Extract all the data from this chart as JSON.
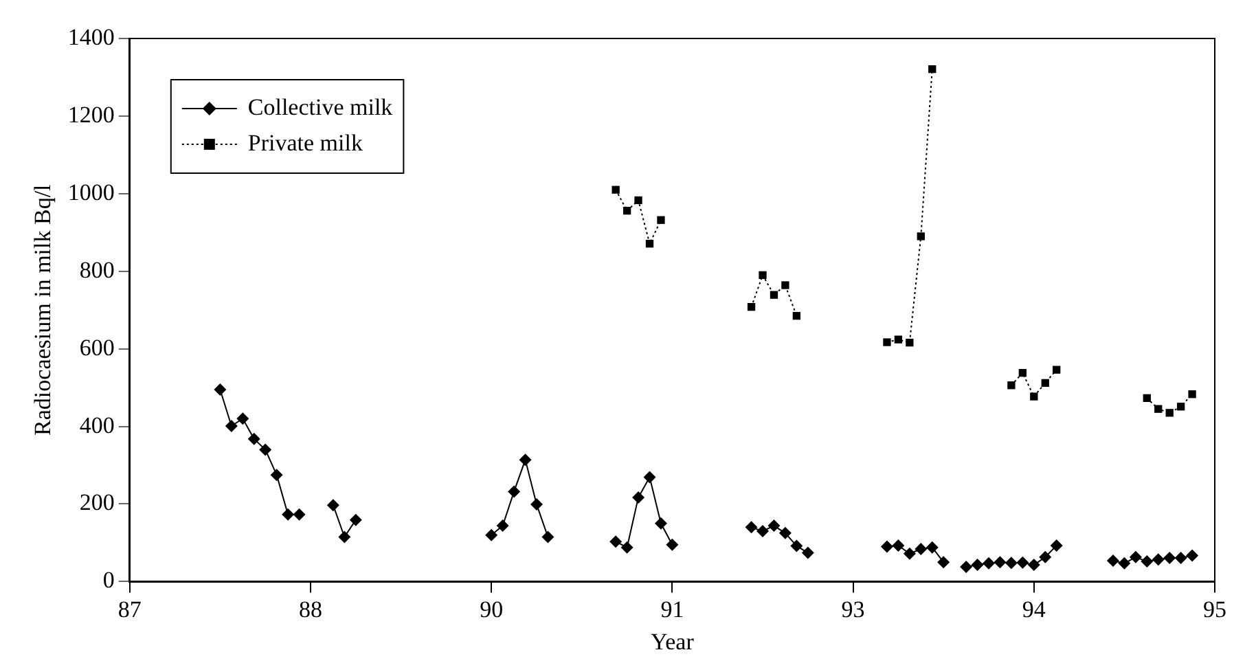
{
  "chart_data": {
    "type": "line",
    "xlabel": "Year",
    "ylabel": "Radiocaesium in milk Bq/l",
    "categories": [
      "87",
      null,
      null,
      null,
      null,
      null,
      null,
      null,
      null,
      null,
      null,
      null,
      null,
      null,
      null,
      null,
      "88",
      null,
      null,
      null,
      null,
      null,
      null,
      null,
      null,
      null,
      null,
      null,
      null,
      null,
      null,
      null,
      "90",
      null,
      null,
      null,
      null,
      null,
      null,
      null,
      null,
      null,
      null,
      null,
      null,
      null,
      null,
      null,
      "91",
      null,
      null,
      null,
      null,
      null,
      null,
      null,
      null,
      null,
      null,
      null,
      null,
      null,
      null,
      null,
      "93",
      null,
      null,
      null,
      null,
      null,
      null,
      null,
      null,
      null,
      null,
      null,
      null,
      null,
      null,
      null,
      "94",
      null,
      null,
      null,
      null,
      null,
      null,
      null,
      null,
      null,
      null,
      null,
      null,
      null,
      null,
      null,
      "95"
    ],
    "ylim": [
      0,
      1400
    ],
    "yticks": [
      0,
      200,
      400,
      600,
      800,
      1000,
      1200,
      1400
    ],
    "grid": false,
    "legend": "top left",
    "series": [
      {
        "name": "Collective milk",
        "color": "#000000",
        "marker": "diamond",
        "line_style": "solid",
        "values": [
          null,
          null,
          null,
          null,
          null,
          null,
          null,
          null,
          495,
          401,
          420,
          368,
          340,
          275,
          173,
          173,
          null,
          null,
          197,
          115,
          159,
          null,
          null,
          null,
          null,
          null,
          null,
          null,
          null,
          null,
          null,
          null,
          120,
          144,
          232,
          314,
          199,
          115,
          null,
          null,
          null,
          null,
          null,
          103,
          88,
          217,
          269,
          150,
          95,
          null,
          null,
          null,
          null,
          null,
          null,
          140,
          130,
          144,
          125,
          92,
          74,
          null,
          null,
          null,
          null,
          null,
          null,
          90,
          93,
          72,
          84,
          88,
          50,
          null,
          38,
          43,
          47,
          50,
          48,
          49,
          43,
          63,
          93,
          null,
          null,
          null,
          null,
          54,
          47,
          63,
          52,
          57,
          61,
          61,
          67,
          null,
          null
        ]
      },
      {
        "name": "Private milk",
        "color": "#000000",
        "marker": "square",
        "line_style": "dotted",
        "values": [
          null,
          null,
          null,
          null,
          null,
          null,
          null,
          null,
          null,
          null,
          null,
          null,
          null,
          null,
          null,
          null,
          null,
          null,
          null,
          null,
          null,
          null,
          null,
          null,
          null,
          null,
          null,
          null,
          null,
          null,
          null,
          null,
          null,
          null,
          null,
          null,
          null,
          null,
          null,
          null,
          null,
          null,
          null,
          1010,
          956,
          983,
          871,
          932,
          null,
          null,
          null,
          null,
          null,
          null,
          null,
          708,
          790,
          739,
          764,
          685,
          null,
          null,
          null,
          null,
          null,
          null,
          null,
          617,
          624,
          616,
          890,
          1321,
          null,
          null,
          null,
          null,
          null,
          null,
          506,
          538,
          477,
          512,
          546,
          null,
          null,
          null,
          null,
          null,
          null,
          null,
          473,
          445,
          435,
          451,
          483,
          null,
          null
        ]
      }
    ]
  }
}
